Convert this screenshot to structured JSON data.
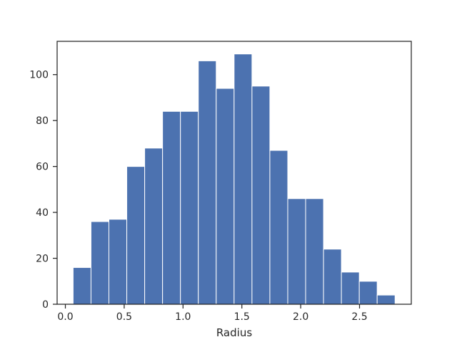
{
  "chart_data": {
    "type": "bar",
    "title": "",
    "xlabel": "Radius",
    "ylabel": "",
    "bin_edges": [
      0.066,
      0.218,
      0.37,
      0.522,
      0.674,
      0.826,
      0.978,
      1.13,
      1.282,
      1.434,
      1.586,
      1.738,
      1.89,
      2.042,
      2.194,
      2.346,
      2.498,
      2.65,
      2.802
    ],
    "values": [
      16,
      36,
      37,
      60,
      68,
      84,
      84,
      106,
      94,
      109,
      95,
      67,
      46,
      46,
      24,
      14,
      10,
      4
    ],
    "xlim": [
      -0.07,
      2.94
    ],
    "ylim": [
      0,
      114.5
    ],
    "xticks": [
      0.0,
      0.5,
      1.0,
      1.5,
      2.0,
      2.5
    ],
    "xtick_labels": [
      "0.0",
      "0.5",
      "1.0",
      "1.5",
      "2.0",
      "2.5"
    ],
    "yticks": [
      0,
      20,
      40,
      60,
      80,
      100
    ],
    "ytick_labels": [
      "0",
      "20",
      "40",
      "60",
      "80",
      "100"
    ],
    "grid": false,
    "legend": "none",
    "colors": {
      "bar": "#4c72b0",
      "bar_edge": "#ffffff",
      "axis": "#262626",
      "text": "#262626"
    }
  }
}
